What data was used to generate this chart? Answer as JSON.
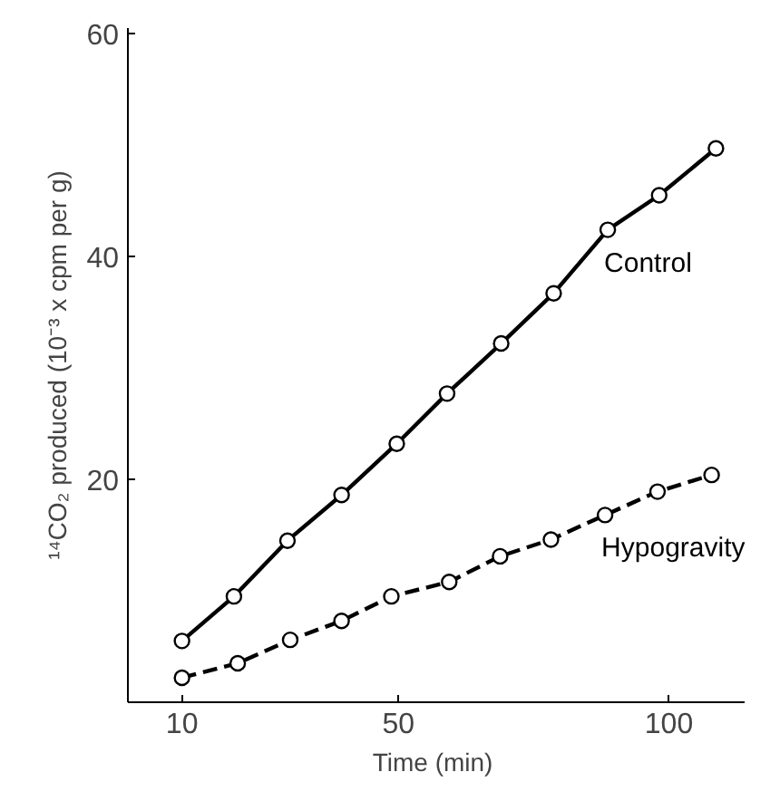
{
  "chart_data": {
    "type": "line",
    "xlabel": "Time  (min)",
    "ylabel": "¹⁴CO₂ produced (10⁻³ x cpm per g)",
    "xlim": [
      0,
      114
    ],
    "ylim": [
      0,
      60.5
    ],
    "xticks": [
      10,
      50,
      100
    ],
    "yticks": [
      20,
      40,
      60
    ],
    "grid": false,
    "legend": false,
    "marker": "circle",
    "series": [
      {
        "name": "Control",
        "color": "#000000",
        "line_style": "solid",
        "x": [
          10,
          19.6,
          29.5,
          39.5,
          49.7,
          59,
          69,
          78.7,
          88.7,
          98.2,
          108.7
        ],
        "values": [
          5.5,
          9.5,
          14.5,
          18.6,
          23.2,
          27.7,
          32.2,
          36.7,
          42.4,
          45.5,
          49.7
        ]
      },
      {
        "name": "Hypogravity",
        "color": "#000000",
        "line_style": "dashed",
        "x": [
          10,
          20.3,
          30,
          39.5,
          48.7,
          59.4,
          68.8,
          78.2,
          88.2,
          97.9,
          107.9
        ],
        "values": [
          2.2,
          3.5,
          5.6,
          7.3,
          9.5,
          10.8,
          13.1,
          14.6,
          16.8,
          18.9,
          20.4
        ]
      }
    ]
  }
}
